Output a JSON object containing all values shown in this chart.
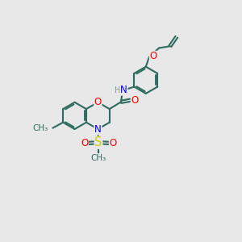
{
  "bg_color": "#e8e8e8",
  "bond_color": "#2d6b5e",
  "bond_width": 1.5,
  "atom_colors": {
    "O": "#ff0000",
    "N": "#0000ff",
    "S": "#cccc00",
    "C": "#2d6b5e",
    "H": "#7a9a9a"
  },
  "font_size": 8.5
}
